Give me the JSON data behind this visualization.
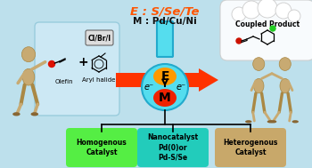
{
  "bg_color": "#bde0ec",
  "title_E": "E : S/Se/Te",
  "title_M": "M : Pd/Cu/Ni",
  "title_E_color": "#ff5500",
  "title_M_color": "#111111",
  "arrow_color": "#ff3300",
  "box1_text": "Homogenous\nCatalyst",
  "box1_color": "#55ee44",
  "box2_text": "Nanocatalyst\nPd(0)or\nPd-S/Se",
  "box2_color": "#22ccbb",
  "box3_text": "Heterogenous\nCatalyst",
  "box3_color": "#c8a86a",
  "coupled_text": "Coupled Product",
  "olefin_text": "Olefin",
  "aryl_text": "Aryl halide",
  "reagent_text": "Cl/Br/I",
  "flask_color": "#55ddee",
  "E_label": "E",
  "M_label": "M",
  "eminus_label": "e⁻",
  "plus_sign": "+",
  "skin_color": "#c8aa72",
  "figsize": [
    3.5,
    1.89
  ],
  "dpi": 100
}
